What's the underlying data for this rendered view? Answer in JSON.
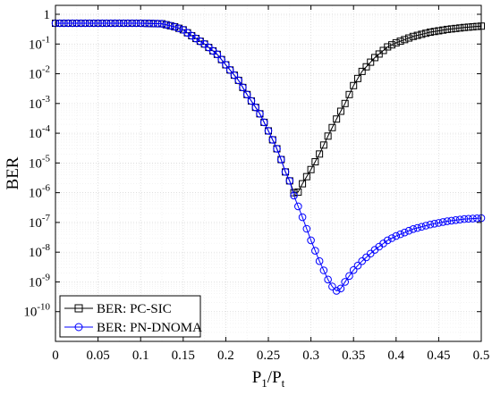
{
  "chart_data": {
    "type": "line",
    "xlabel": "P1/Pt",
    "xlabel_parts": {
      "base": "P",
      "sub1": "1",
      "slash": "/",
      "base2": "P",
      "sub2": "t"
    },
    "ylabel": "BER",
    "y_scale": "log",
    "xlim": [
      0,
      0.5
    ],
    "ylim_exp": [
      -11,
      0.3
    ],
    "x_ticks": [
      "0",
      "0.05",
      "0.1",
      "0.15",
      "0.2",
      "0.25",
      "0.3",
      "0.35",
      "0.4",
      "0.45",
      "0.5"
    ],
    "y_ticks": [
      {
        "mant": "1",
        "exp": ""
      },
      {
        "mant": "10",
        "exp": "-1"
      },
      {
        "mant": "10",
        "exp": "-2"
      },
      {
        "mant": "10",
        "exp": "-3"
      },
      {
        "mant": "10",
        "exp": "-4"
      },
      {
        "mant": "10",
        "exp": "-5"
      },
      {
        "mant": "10",
        "exp": "-6"
      },
      {
        "mant": "10",
        "exp": "-7"
      },
      {
        "mant": "10",
        "exp": "-8"
      },
      {
        "mant": "10",
        "exp": "-9"
      },
      {
        "mant": "10",
        "exp": "-10"
      }
    ],
    "grid": true,
    "legend_position": "bottom-left",
    "series": [
      {
        "name": "BER: PC-SIC",
        "color": "#000000",
        "marker": "square",
        "points": [
          [
            0.0,
            0.5
          ],
          [
            0.05,
            0.5
          ],
          [
            0.1,
            0.5
          ],
          [
            0.125,
            0.48
          ],
          [
            0.14,
            0.38
          ],
          [
            0.15,
            0.3
          ],
          [
            0.16,
            0.19
          ],
          [
            0.175,
            0.1
          ],
          [
            0.19,
            0.045
          ],
          [
            0.2,
            0.02
          ],
          [
            0.215,
            0.006
          ],
          [
            0.225,
            0.002
          ],
          [
            0.24,
            0.00045
          ],
          [
            0.25,
            0.00012
          ],
          [
            0.26,
            3e-05
          ],
          [
            0.265,
            1.3e-05
          ],
          [
            0.27,
            5e-06
          ],
          [
            0.275,
            2.5e-06
          ],
          [
            0.28,
            1e-06
          ],
          [
            0.285,
            1.05e-06
          ],
          [
            0.29,
            2e-06
          ],
          [
            0.3,
            6e-06
          ],
          [
            0.31,
            2e-05
          ],
          [
            0.32,
            8e-05
          ],
          [
            0.33,
            0.0003
          ],
          [
            0.34,
            0.001
          ],
          [
            0.35,
            0.004
          ],
          [
            0.36,
            0.012
          ],
          [
            0.375,
            0.035
          ],
          [
            0.39,
            0.08
          ],
          [
            0.4,
            0.11
          ],
          [
            0.42,
            0.18
          ],
          [
            0.44,
            0.25
          ],
          [
            0.46,
            0.31
          ],
          [
            0.48,
            0.36
          ],
          [
            0.5,
            0.4
          ]
        ]
      },
      {
        "name": "BER: PN-DNOMA",
        "color": "#0000ff",
        "marker": "circle",
        "points": [
          [
            0.0,
            0.5
          ],
          [
            0.05,
            0.5
          ],
          [
            0.1,
            0.5
          ],
          [
            0.125,
            0.48
          ],
          [
            0.14,
            0.38
          ],
          [
            0.15,
            0.3
          ],
          [
            0.16,
            0.19
          ],
          [
            0.175,
            0.1
          ],
          [
            0.19,
            0.045
          ],
          [
            0.2,
            0.02
          ],
          [
            0.215,
            0.006
          ],
          [
            0.225,
            0.002
          ],
          [
            0.24,
            0.00045
          ],
          [
            0.25,
            0.00012
          ],
          [
            0.26,
            3e-05
          ],
          [
            0.265,
            1.3e-05
          ],
          [
            0.27,
            5e-06
          ],
          [
            0.275,
            2.5e-06
          ],
          [
            0.28,
            8e-07
          ],
          [
            0.29,
            1.5e-07
          ],
          [
            0.3,
            2.5e-08
          ],
          [
            0.31,
            5e-09
          ],
          [
            0.32,
            1.2e-09
          ],
          [
            0.325,
            7e-10
          ],
          [
            0.33,
            5e-10
          ],
          [
            0.335,
            6e-10
          ],
          [
            0.34,
            1e-09
          ],
          [
            0.35,
            2.5e-09
          ],
          [
            0.36,
            5e-09
          ],
          [
            0.375,
            1.2e-08
          ],
          [
            0.39,
            2.5e-08
          ],
          [
            0.4,
            3.5e-08
          ],
          [
            0.42,
            6e-08
          ],
          [
            0.44,
            8.5e-08
          ],
          [
            0.46,
            1.1e-07
          ],
          [
            0.48,
            1.3e-07
          ],
          [
            0.5,
            1.4e-07
          ]
        ]
      }
    ]
  }
}
